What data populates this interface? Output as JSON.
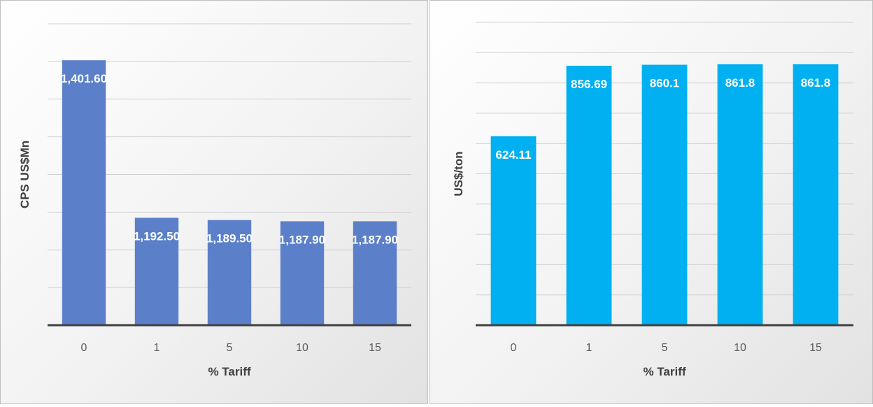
{
  "chart_data": [
    {
      "type": "bar",
      "categories": [
        "0",
        "1",
        "5",
        "10",
        "15"
      ],
      "series": [
        {
          "values": [
            1401.6,
            1192.5,
            1189.5,
            1187.9,
            1187.9
          ]
        }
      ],
      "value_labels": [
        "1,401.60",
        "1,192.50",
        "1,189.50",
        "1,187.90",
        "1,187.90"
      ],
      "title": "",
      "xlabel": "% Tariff",
      "ylabel": "CPS US$Mn",
      "ylim": [
        1050,
        1450
      ],
      "ytick_step": 50,
      "y_tick_labels_shown": false,
      "grid": true,
      "bar_color": "#5b80c9"
    },
    {
      "type": "bar",
      "categories": [
        "0",
        "1",
        "5",
        "10",
        "15"
      ],
      "series": [
        {
          "values": [
            624.11,
            856.69,
            860.1,
            861.8,
            861.8
          ]
        }
      ],
      "value_labels": [
        "624.11",
        "856.69",
        "860.1",
        "861.8",
        "861.8"
      ],
      "title": "",
      "xlabel": "% Tariff",
      "ylabel": "US$/ton",
      "ylim": [
        0,
        1000
      ],
      "ytick_step": 100,
      "y_tick_labels_shown": false,
      "grid": true,
      "bar_color": "#00b0f0"
    }
  ]
}
